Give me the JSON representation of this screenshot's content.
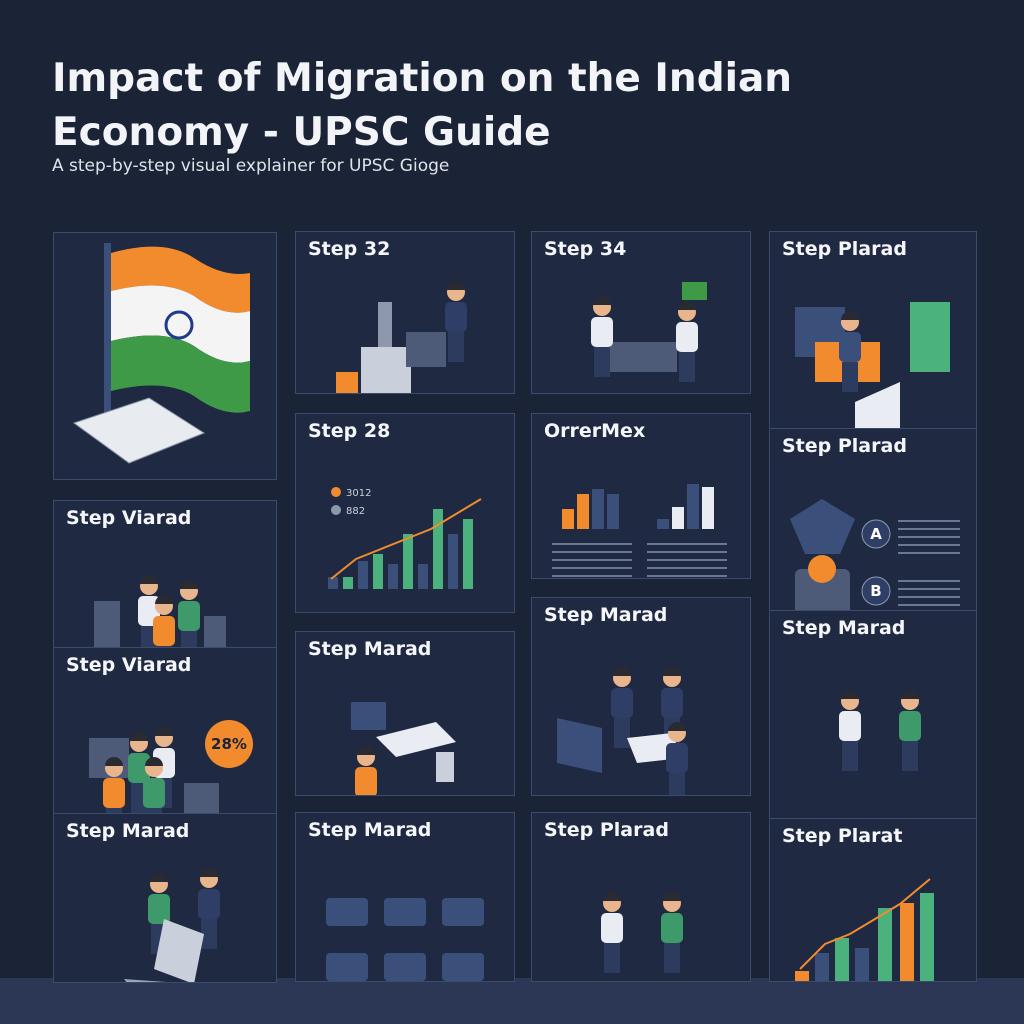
{
  "header": {
    "title": "Impact of Migration on the Indian Economy - UPSC Guide",
    "subtitle": "A step-by-step visual explainer for UPSC Gioge"
  },
  "panels": [
    {},
    {
      "title": "Step Viarad"
    },
    {
      "title": "Step Viarad",
      "badge": "28%"
    },
    {
      "title": "Step Marad"
    },
    {
      "title": "Step 32"
    },
    {
      "title": "Step 28",
      "legend": [
        "3012",
        "882"
      ]
    },
    {
      "title": "Step Marad"
    },
    {
      "title": "Step Marad"
    },
    {
      "title": "Step 34"
    },
    {
      "title": "OrrerMex"
    },
    {
      "title": "Step Marad"
    },
    {
      "title": "Step Plarad"
    },
    {
      "title": "Step Plarad"
    },
    {
      "title": "Step Plarad",
      "labels": [
        "A",
        "B"
      ]
    },
    {
      "title": "Step Marad"
    },
    {
      "title": "Step Plarat"
    }
  ]
}
